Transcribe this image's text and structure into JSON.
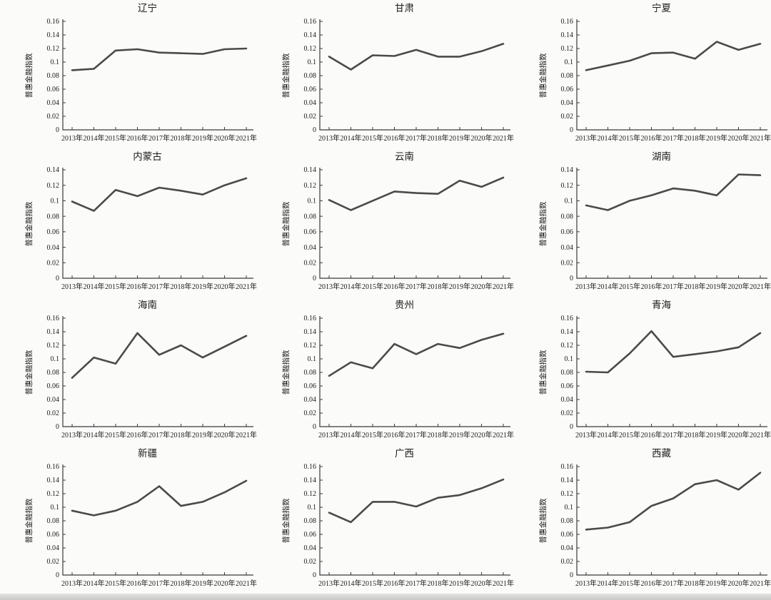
{
  "page": {
    "background": "#fbfbfa",
    "line_color": "#4a4a4a",
    "axis_color": "#3a3a3a"
  },
  "chart_data": [
    {
      "type": "line",
      "title": "辽宁",
      "ylabel": "普惠金融指数",
      "xlabel": "",
      "categories": [
        "2013年",
        "2014年",
        "2015年",
        "2016年",
        "2017年",
        "2018年",
        "2019年",
        "2020年",
        "2021年"
      ],
      "values": [
        0.088,
        0.09,
        0.117,
        0.119,
        0.114,
        0.113,
        0.112,
        0.119,
        0.12
      ],
      "ylim": [
        0,
        0.16
      ],
      "ytick_step": 0.02,
      "yticks": [
        "0",
        "0.02",
        "0.04",
        "0.06",
        "0.08",
        "0.1",
        "0.12",
        "0.14",
        "0.16"
      ],
      "grid": false,
      "legend": "none"
    },
    {
      "type": "line",
      "title": "甘肃",
      "ylabel": "普惠金融指数",
      "xlabel": "",
      "categories": [
        "2013年",
        "2014年",
        "2015年",
        "2016年",
        "2017年",
        "2018年",
        "2019年",
        "2020年",
        "2021年"
      ],
      "values": [
        0.108,
        0.089,
        0.11,
        0.109,
        0.118,
        0.108,
        0.108,
        0.116,
        0.127
      ],
      "ylim": [
        0,
        0.16
      ],
      "ytick_step": 0.02,
      "yticks": [
        "0",
        "0.02",
        "0.04",
        "0.06",
        "0.08",
        "0.1",
        "0.12",
        "0.14",
        "0.16"
      ],
      "grid": false,
      "legend": "none"
    },
    {
      "type": "line",
      "title": "宁夏",
      "ylabel": "普惠金融指数",
      "xlabel": "",
      "categories": [
        "2013年",
        "2014年",
        "2015年",
        "2016年",
        "2017年",
        "2018年",
        "2019年",
        "2020年",
        "2021年"
      ],
      "values": [
        0.088,
        0.095,
        0.102,
        0.113,
        0.114,
        0.105,
        0.13,
        0.118,
        0.127
      ],
      "ylim": [
        0,
        0.16
      ],
      "ytick_step": 0.02,
      "yticks": [
        "0",
        "0.02",
        "0.04",
        "0.06",
        "0.08",
        "0.1",
        "0.12",
        "0.14",
        "0.16"
      ],
      "grid": false,
      "legend": "none"
    },
    {
      "type": "line",
      "title": "内蒙古",
      "ylabel": "普惠金融指数",
      "xlabel": "",
      "categories": [
        "2013年",
        "2014年",
        "2015年",
        "2016年",
        "2017年",
        "2018年",
        "2019年",
        "2020年",
        "2021年"
      ],
      "values": [
        0.099,
        0.087,
        0.114,
        0.106,
        0.117,
        0.113,
        0.108,
        0.12,
        0.129
      ],
      "ylim": [
        0,
        0.14
      ],
      "ytick_step": 0.02,
      "yticks": [
        "0",
        "0.02",
        "0.04",
        "0.06",
        "0.08",
        "0.1",
        "0.12",
        "0.14"
      ],
      "grid": false,
      "legend": "none"
    },
    {
      "type": "line",
      "title": "云南",
      "ylabel": "普惠金融指数",
      "xlabel": "",
      "categories": [
        "2013年",
        "2014年",
        "2015年",
        "2016年",
        "2017年",
        "2018年",
        "2019年",
        "2020年",
        "2021年"
      ],
      "values": [
        0.101,
        0.088,
        0.1,
        0.112,
        0.11,
        0.109,
        0.126,
        0.118,
        0.13
      ],
      "ylim": [
        0,
        0.14
      ],
      "ytick_step": 0.02,
      "yticks": [
        "0",
        "0.02",
        "0.04",
        "0.06",
        "0.08",
        "0.1",
        "0.12",
        "0.14"
      ],
      "grid": false,
      "legend": "none"
    },
    {
      "type": "line",
      "title": "湖南",
      "ylabel": "普惠金融指数",
      "xlabel": "",
      "categories": [
        "2013年",
        "2014年",
        "2015年",
        "2016年",
        "2017年",
        "2018年",
        "2019年",
        "2020年",
        "2021年"
      ],
      "values": [
        0.094,
        0.088,
        0.1,
        0.107,
        0.116,
        0.113,
        0.107,
        0.134,
        0.133
      ],
      "ylim": [
        0,
        0.14
      ],
      "ytick_step": 0.02,
      "yticks": [
        "0",
        "0.02",
        "0.04",
        "0.06",
        "0.08",
        "0.1",
        "0.12",
        "0.14"
      ],
      "grid": false,
      "legend": "none"
    },
    {
      "type": "line",
      "title": "海南",
      "ylabel": "普惠金融指数",
      "xlabel": "",
      "categories": [
        "2013年",
        "2014年",
        "2015年",
        "2016年",
        "2017年",
        "2018年",
        "2019年",
        "2020年",
        "2021年"
      ],
      "values": [
        0.072,
        0.102,
        0.093,
        0.138,
        0.106,
        0.12,
        0.102,
        0.118,
        0.134
      ],
      "ylim": [
        0,
        0.16
      ],
      "ytick_step": 0.02,
      "yticks": [
        "0",
        "0.02",
        "0.04",
        "0.06",
        "0.08",
        "0.1",
        "0.12",
        "0.14",
        "0.16"
      ],
      "grid": false,
      "legend": "none"
    },
    {
      "type": "line",
      "title": "贵州",
      "ylabel": "普惠金融指数",
      "xlabel": "",
      "categories": [
        "2013年",
        "2014年",
        "2015年",
        "2016年",
        "2017年",
        "2018年",
        "2019年",
        "2020年",
        "2021年"
      ],
      "values": [
        0.075,
        0.095,
        0.086,
        0.122,
        0.107,
        0.122,
        0.116,
        0.128,
        0.137
      ],
      "ylim": [
        0,
        0.16
      ],
      "ytick_step": 0.02,
      "yticks": [
        "0",
        "0.02",
        "0.04",
        "0.06",
        "0.08",
        "0.1",
        "0.12",
        "0.14",
        "0.16"
      ],
      "grid": false,
      "legend": "none"
    },
    {
      "type": "line",
      "title": "青海",
      "ylabel": "普惠金融指数",
      "xlabel": "",
      "categories": [
        "2013年",
        "2014年",
        "2015年",
        "2016年",
        "2017年",
        "2018年",
        "2019年",
        "2020年",
        "2021年"
      ],
      "values": [
        0.081,
        0.08,
        0.108,
        0.141,
        0.103,
        0.107,
        0.111,
        0.117,
        0.138
      ],
      "ylim": [
        0,
        0.16
      ],
      "ytick_step": 0.02,
      "yticks": [
        "0",
        "0.02",
        "0.04",
        "0.06",
        "0.08",
        "0.1",
        "0.12",
        "0.14",
        "0.16"
      ],
      "grid": false,
      "legend": "none"
    },
    {
      "type": "line",
      "title": "新疆",
      "ylabel": "普惠金融指数",
      "xlabel": "",
      "categories": [
        "2013年",
        "2014年",
        "2015年",
        "2016年",
        "2017年",
        "2018年",
        "2019年",
        "2020年",
        "2021年"
      ],
      "values": [
        0.095,
        0.088,
        0.095,
        0.108,
        0.131,
        0.102,
        0.108,
        0.122,
        0.139
      ],
      "ylim": [
        0,
        0.16
      ],
      "ytick_step": 0.02,
      "yticks": [
        "0",
        "0.02",
        "0.04",
        "0.06",
        "0.08",
        "0.1",
        "0.12",
        "0.14",
        "0.16"
      ],
      "grid": false,
      "legend": "none"
    },
    {
      "type": "line",
      "title": "广西",
      "ylabel": "普惠金融指数",
      "xlabel": "",
      "categories": [
        "2013年",
        "2014年",
        "2015年",
        "2016年",
        "2017年",
        "2018年",
        "2019年",
        "2020年",
        "2021年"
      ],
      "values": [
        0.092,
        0.078,
        0.108,
        0.108,
        0.101,
        0.114,
        0.118,
        0.128,
        0.141
      ],
      "ylim": [
        0,
        0.16
      ],
      "ytick_step": 0.02,
      "yticks": [
        "0",
        "0.02",
        "0.04",
        "0.06",
        "0.08",
        "0.1",
        "0.12",
        "0.14",
        "0.16"
      ],
      "grid": false,
      "legend": "none"
    },
    {
      "type": "line",
      "title": "西藏",
      "ylabel": "普惠金融指数",
      "xlabel": "",
      "categories": [
        "2013年",
        "2014年",
        "2015年",
        "2016年",
        "2017年",
        "2018年",
        "2019年",
        "2020年",
        "2021年"
      ],
      "values": [
        0.067,
        0.07,
        0.078,
        0.102,
        0.113,
        0.134,
        0.14,
        0.126,
        0.151
      ],
      "ylim": [
        0,
        0.16
      ],
      "ytick_step": 0.02,
      "yticks": [
        "0",
        "0.02",
        "0.04",
        "0.06",
        "0.08",
        "0.1",
        "0.12",
        "0.14",
        "0.16"
      ],
      "grid": false,
      "legend": "none"
    }
  ]
}
